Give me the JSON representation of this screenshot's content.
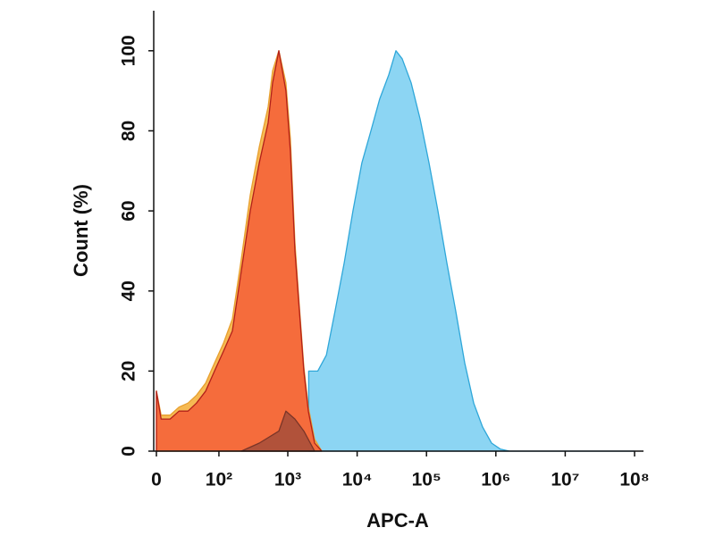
{
  "chart_data": {
    "type": "area",
    "xscale": "biexponential",
    "x_label": "APC-A",
    "y_label": "Count  (%)",
    "xlim": [
      0,
      100000000
    ],
    "ylim": [
      0,
      110
    ],
    "xticks": [
      0,
      {
        "value": 100,
        "label": "10²"
      },
      {
        "value": 1000,
        "label": "10³"
      },
      {
        "value": 10000,
        "label": "10⁴"
      },
      {
        "value": 100000,
        "label": "10⁵"
      },
      {
        "value": 1000000,
        "label": "10⁶"
      },
      {
        "value": 10000000,
        "label": "10⁷"
      },
      {
        "value": 100000000,
        "label": "10⁸"
      }
    ],
    "yticks": [
      0,
      20,
      40,
      60,
      80,
      100
    ],
    "series": [
      {
        "color": "#86d3f2",
        "edge": "#2fa7d9",
        "x": [
          2000,
          2700,
          3600,
          4800,
          6500,
          8700,
          11700,
          15800,
          21200,
          28600,
          36200,
          44600,
          60000,
          80700,
          108500,
          146000,
          196500,
          264000,
          356000,
          479000,
          644000,
          866000,
          1165000,
          1568000,
          100000000
        ],
        "values": [
          20,
          20,
          24,
          35,
          47,
          60,
          72,
          80,
          88,
          94,
          100,
          98,
          92,
          83,
          72,
          60,
          47,
          35,
          22,
          12,
          6,
          2,
          0.5,
          0,
          0
        ]
      },
      {
        "color": "#f6b64a",
        "edge": "#e8a030",
        "x": [
          0,
          4,
          12,
          21,
          32,
          45,
          63,
          86,
          117,
          158,
          213,
          287,
          387,
          520,
          604,
          742,
          940,
          1091,
          1267,
          1469,
          1706,
          1977,
          2435,
          3085
        ],
        "values": [
          15,
          9,
          9,
          11,
          12,
          14,
          17,
          22,
          27,
          33,
          48,
          64,
          76,
          86,
          95,
          100,
          92,
          78,
          52,
          36,
          21,
          11,
          3,
          0
        ]
      },
      {
        "color": "#f4673b",
        "edge": "#b3201a",
        "x": [
          0,
          4,
          12,
          21,
          32,
          45,
          63,
          86,
          117,
          158,
          213,
          287,
          387,
          520,
          604,
          742,
          940,
          1091,
          1267,
          1469,
          1706,
          1977,
          2435,
          3085
        ],
        "values": [
          15,
          8,
          8,
          10,
          10,
          12,
          15,
          20,
          25,
          30,
          45,
          60,
          72,
          82,
          92,
          100,
          90,
          75,
          50,
          35,
          20,
          10,
          2,
          0
        ]
      },
      {
        "color": "#9a4a3a",
        "edge": "#7a3528",
        "x": [
          213,
          387,
          742,
          940,
          1267,
          1706,
          2435
        ],
        "values": [
          0,
          2,
          5,
          10,
          8,
          5,
          0
        ]
      }
    ]
  }
}
